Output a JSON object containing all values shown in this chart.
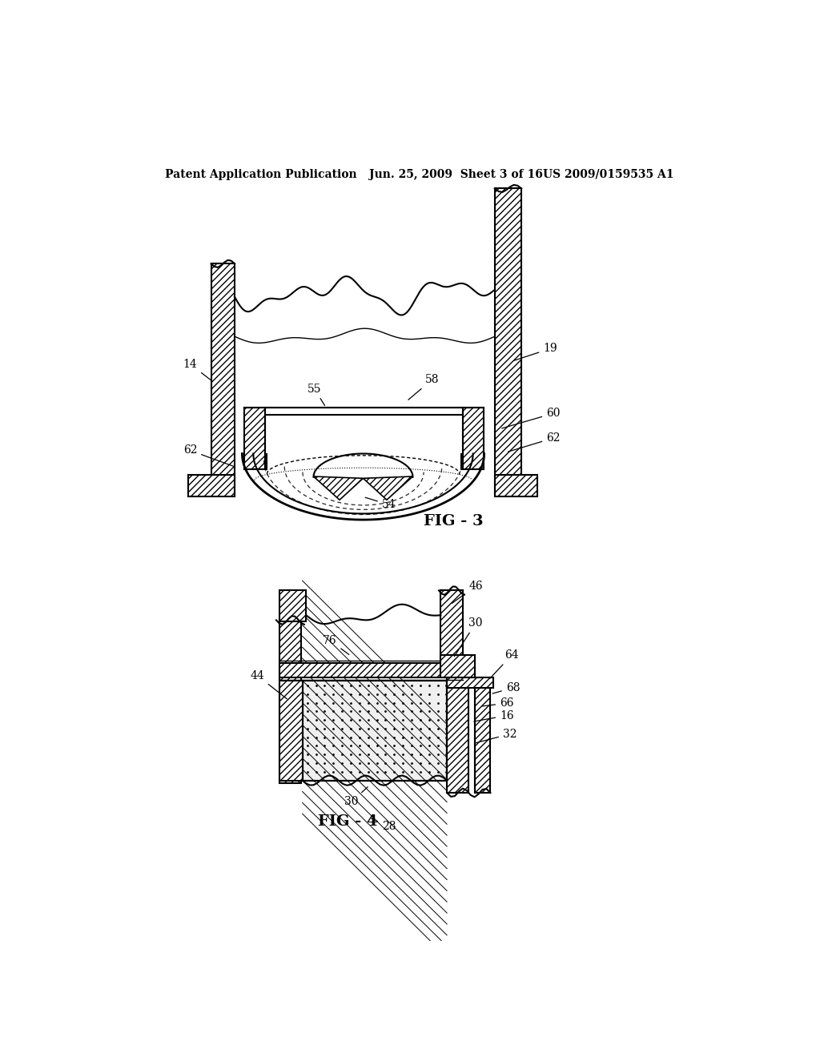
{
  "bg_color": "#ffffff",
  "header_text1": "Patent Application Publication",
  "header_text2": "Jun. 25, 2009  Sheet 3 of 16",
  "header_text3": "US 2009/0159535 A1"
}
